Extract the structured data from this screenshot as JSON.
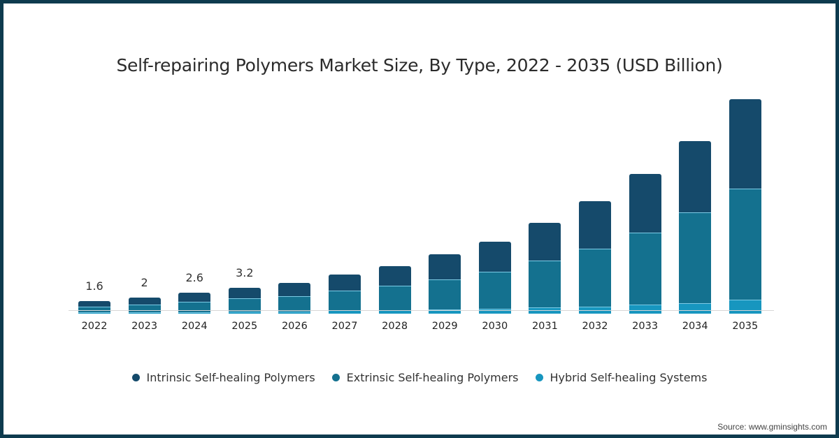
{
  "chart_data": {
    "type": "bar",
    "stacked": true,
    "title": "Self-repairing Polymers Market Size, By Type, 2022 - 2035 (USD Billion)",
    "xlabel": "",
    "ylabel": "USD Billion",
    "categories": [
      "2022",
      "2023",
      "2024",
      "2025",
      "2026",
      "2027",
      "2028",
      "2029",
      "2030",
      "2031",
      "2032",
      "2033",
      "2034",
      "2035"
    ],
    "series": [
      {
        "name": "Hybrid Self-healing Systems",
        "color": "#1796bf",
        "values": [
          0.2,
          0.2,
          0.2,
          0.3,
          0.3,
          0.4,
          0.4,
          0.5,
          0.6,
          0.8,
          0.9,
          1.1,
          1.3,
          1.7
        ]
      },
      {
        "name": "Extrinsic Self-healing Polymers",
        "color": "#14718f",
        "values": [
          0.7,
          0.9,
          1.3,
          1.6,
          1.9,
          2.5,
          3.1,
          3.8,
          4.6,
          5.8,
          7.2,
          9.0,
          11.3,
          13.9
        ]
      },
      {
        "name": "Intrinsic Self-healing Polymers",
        "color": "#154a6b",
        "values": [
          0.7,
          0.9,
          1.1,
          1.3,
          1.6,
          2.0,
          2.4,
          3.1,
          3.8,
          4.7,
          5.9,
          7.3,
          8.9,
          11.1
        ]
      }
    ],
    "totals_labeled": {
      "2022": 1.6,
      "2023": 2,
      "2024": 2.6,
      "2025": 3.2
    },
    "ylim": [
      0,
      27
    ],
    "grid": false,
    "legend_position": "bottom"
  },
  "title": "Self-repairing Polymers Market Size, By Type, 2022 - 2035 (USD Billion)",
  "bars": [
    {
      "year": "2022",
      "label": "1.6",
      "hybrid": 0.2,
      "extrinsic": 0.7,
      "intrinsic": 0.7
    },
    {
      "year": "2023",
      "label": "2",
      "hybrid": 0.2,
      "extrinsic": 0.9,
      "intrinsic": 0.9
    },
    {
      "year": "2024",
      "label": "2.6",
      "hybrid": 0.2,
      "extrinsic": 1.3,
      "intrinsic": 1.1
    },
    {
      "year": "2025",
      "label": "3.2",
      "hybrid": 0.3,
      "extrinsic": 1.6,
      "intrinsic": 1.3
    },
    {
      "year": "2026",
      "label": "",
      "hybrid": 0.3,
      "extrinsic": 1.9,
      "intrinsic": 1.6
    },
    {
      "year": "2027",
      "label": "",
      "hybrid": 0.4,
      "extrinsic": 2.5,
      "intrinsic": 2.0
    },
    {
      "year": "2028",
      "label": "",
      "hybrid": 0.4,
      "extrinsic": 3.1,
      "intrinsic": 2.4
    },
    {
      "year": "2029",
      "label": "",
      "hybrid": 0.5,
      "extrinsic": 3.8,
      "intrinsic": 3.1
    },
    {
      "year": "2030",
      "label": "",
      "hybrid": 0.6,
      "extrinsic": 4.6,
      "intrinsic": 3.8
    },
    {
      "year": "2031",
      "label": "",
      "hybrid": 0.8,
      "extrinsic": 5.8,
      "intrinsic": 4.7
    },
    {
      "year": "2032",
      "label": "",
      "hybrid": 0.9,
      "extrinsic": 7.2,
      "intrinsic": 5.9
    },
    {
      "year": "2033",
      "label": "",
      "hybrid": 1.1,
      "extrinsic": 9.0,
      "intrinsic": 7.3
    },
    {
      "year": "2034",
      "label": "",
      "hybrid": 1.3,
      "extrinsic": 11.3,
      "intrinsic": 8.9
    },
    {
      "year": "2035",
      "label": "",
      "hybrid": 1.7,
      "extrinsic": 13.9,
      "intrinsic": 11.1
    }
  ],
  "legend": [
    {
      "label": "Intrinsic Self-healing Polymers",
      "color": "#154a6b"
    },
    {
      "label": "Extrinsic Self-healing Polymers",
      "color": "#14718f"
    },
    {
      "label": "Hybrid Self-healing Systems",
      "color": "#1796bf"
    }
  ],
  "source": "Source: www.gminsights.com",
  "colors": {
    "border": "#0e3b4e",
    "intrinsic": "#154a6b",
    "extrinsic": "#14718f",
    "hybrid": "#1796bf"
  }
}
